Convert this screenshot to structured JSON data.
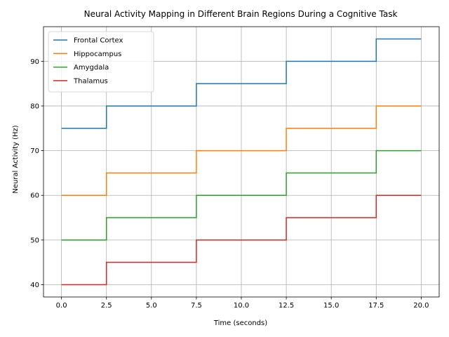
{
  "chart_data": {
    "type": "line",
    "step": "mid",
    "title": "Neural Activity Mapping in Different Brain Regions During a Cognitive Task",
    "xlabel": "Time (seconds)",
    "ylabel": "Neural Activity (Hz)",
    "x": [
      0,
      5,
      10,
      15,
      20
    ],
    "xlim": [
      -1,
      21
    ],
    "ylim": [
      37.25,
      97.75
    ],
    "xticks": [
      0.0,
      2.5,
      5.0,
      7.5,
      10.0,
      12.5,
      15.0,
      17.5,
      20.0
    ],
    "xtick_labels": [
      "0.0",
      "2.5",
      "5.0",
      "7.5",
      "10.0",
      "12.5",
      "15.0",
      "17.5",
      "20.0"
    ],
    "yticks": [
      40,
      50,
      60,
      70,
      80,
      90
    ],
    "ytick_labels": [
      "40",
      "50",
      "60",
      "70",
      "80",
      "90"
    ],
    "grid": true,
    "legend_position": "top-left",
    "series": [
      {
        "name": "Frontal Cortex",
        "color": "#1f77b4",
        "values": [
          75,
          80,
          85,
          90,
          95
        ]
      },
      {
        "name": "Hippocampus",
        "color": "#ff7f0e",
        "values": [
          60,
          65,
          70,
          75,
          80
        ]
      },
      {
        "name": "Amygdala",
        "color": "#2ca02c",
        "values": [
          50,
          55,
          60,
          65,
          70
        ]
      },
      {
        "name": "Thalamus",
        "color": "#d62728",
        "values": [
          40,
          45,
          50,
          55,
          60
        ]
      }
    ]
  }
}
